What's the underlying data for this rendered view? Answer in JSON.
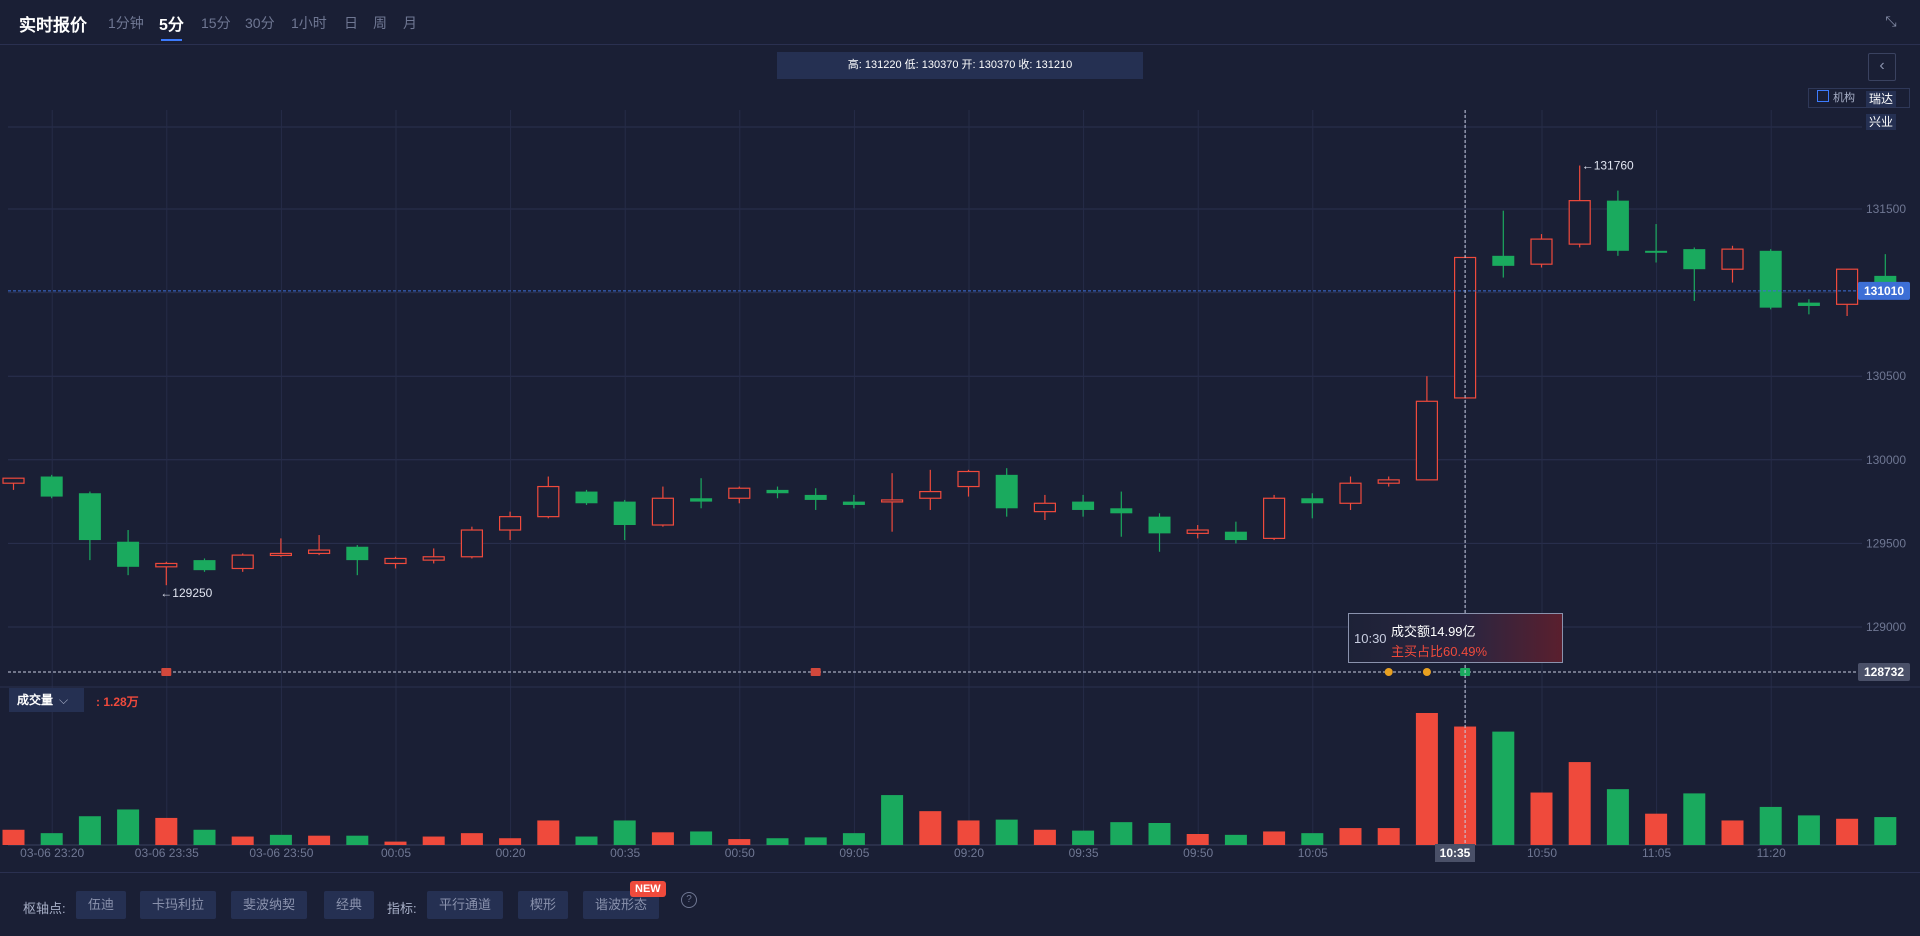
{
  "header": {
    "title": "实时报价",
    "tabs": [
      "1分钟",
      "5分",
      "15分",
      "30分",
      "1小时",
      "日",
      "周",
      "月"
    ],
    "active_tab": "5分"
  },
  "ohlc_text": "高: 131220 低: 130370 开: 130370 收: 131210",
  "legend": {
    "label": "机构",
    "tags": [
      "瑞达",
      "兴业"
    ]
  },
  "tooltip": {
    "time": "10:30",
    "amount": "成交额14.99亿",
    "buy_ratio": "主买占比60.49%"
  },
  "volume_panel": {
    "selector_label": "成交量",
    "value": ": 1.28万"
  },
  "cursor_time": "10:35",
  "bottom": {
    "pivot_label": "枢轴点:",
    "pivot_buttons": [
      "伍迪",
      "卡玛利拉",
      "斐波纳契",
      "经典"
    ],
    "indicator_label": "指标:",
    "indicator_buttons": [
      "平行通道",
      "楔形",
      "谐波形态"
    ],
    "new_badge": "NEW"
  },
  "colors": {
    "up": "#ef4a3c",
    "down": "#1aaa5e",
    "current_price": "#3d6fd6",
    "bg": "#1a1f35"
  },
  "chart_data": {
    "type": "candlestick",
    "price_axis": {
      "ticks": [
        129000,
        129500,
        130000,
        130500,
        131000,
        131500
      ],
      "range": [
        128760,
        131950
      ]
    },
    "current_price_label": "131010",
    "current_price": 131010,
    "low_line_label": "128732",
    "low_line": 128732,
    "high_annotation": {
      "value": 131760,
      "label": "←131760",
      "bar": 41
    },
    "low_annotation": {
      "value": 129250,
      "label": "←129250",
      "bar": 4
    },
    "x_ticks": [
      {
        "bar": 1,
        "label": "03-06 23:20"
      },
      {
        "bar": 4,
        "label": "03-06 23:35"
      },
      {
        "bar": 7,
        "label": "03-06 23:50"
      },
      {
        "bar": 10,
        "label": "00:05"
      },
      {
        "bar": 13,
        "label": "00:20"
      },
      {
        "bar": 16,
        "label": "00:35"
      },
      {
        "bar": 19,
        "label": "00:50"
      },
      {
        "bar": 22,
        "label": "09:05"
      },
      {
        "bar": 25,
        "label": "09:20"
      },
      {
        "bar": 28,
        "label": "09:35"
      },
      {
        "bar": 31,
        "label": "09:50"
      },
      {
        "bar": 34,
        "label": "10:05"
      },
      {
        "bar": 38,
        "label": "10:35"
      },
      {
        "bar": 40,
        "label": "10:50"
      },
      {
        "bar": 43,
        "label": "11:05"
      },
      {
        "bar": 46,
        "label": "11:20"
      }
    ],
    "cursor_bar": 38,
    "candles": [
      {
        "o": 129860,
        "h": 129890,
        "l": 129820,
        "c": 129890
      },
      {
        "o": 129900,
        "h": 129910,
        "l": 129770,
        "c": 129780
      },
      {
        "o": 129800,
        "h": 129810,
        "l": 129400,
        "c": 129520
      },
      {
        "o": 129510,
        "h": 129580,
        "l": 129310,
        "c": 129360
      },
      {
        "o": 129360,
        "h": 129390,
        "l": 129250,
        "c": 129380
      },
      {
        "o": 129400,
        "h": 129410,
        "l": 129330,
        "c": 129340
      },
      {
        "o": 129350,
        "h": 129440,
        "l": 129330,
        "c": 129430
      },
      {
        "o": 129440,
        "h": 129530,
        "l": 129420,
        "c": 129440
      },
      {
        "o": 129440,
        "h": 129550,
        "l": 129430,
        "c": 129460
      },
      {
        "o": 129480,
        "h": 129490,
        "l": 129310,
        "c": 129400
      },
      {
        "o": 129380,
        "h": 129420,
        "l": 129350,
        "c": 129410
      },
      {
        "o": 129400,
        "h": 129470,
        "l": 129380,
        "c": 129420
      },
      {
        "o": 129420,
        "h": 129600,
        "l": 129410,
        "c": 129580
      },
      {
        "o": 129580,
        "h": 129690,
        "l": 129520,
        "c": 129660
      },
      {
        "o": 129660,
        "h": 129900,
        "l": 129650,
        "c": 129840
      },
      {
        "o": 129810,
        "h": 129820,
        "l": 129730,
        "c": 129740
      },
      {
        "o": 129750,
        "h": 129760,
        "l": 129520,
        "c": 129610
      },
      {
        "o": 129610,
        "h": 129840,
        "l": 129600,
        "c": 129770
      },
      {
        "o": 129770,
        "h": 129890,
        "l": 129710,
        "c": 129750
      },
      {
        "o": 129770,
        "h": 129840,
        "l": 129740,
        "c": 129830
      },
      {
        "o": 129820,
        "h": 129840,
        "l": 129770,
        "c": 129800
      },
      {
        "o": 129790,
        "h": 129830,
        "l": 129700,
        "c": 129760
      },
      {
        "o": 129750,
        "h": 129790,
        "l": 129710,
        "c": 129730
      },
      {
        "o": 129760,
        "h": 129920,
        "l": 129570,
        "c": 129760
      },
      {
        "o": 129770,
        "h": 129940,
        "l": 129700,
        "c": 129810
      },
      {
        "o": 129840,
        "h": 129940,
        "l": 129780,
        "c": 129930
      },
      {
        "o": 129910,
        "h": 129950,
        "l": 129660,
        "c": 129710
      },
      {
        "o": 129690,
        "h": 129790,
        "l": 129640,
        "c": 129740
      },
      {
        "o": 129750,
        "h": 129790,
        "l": 129660,
        "c": 129700
      },
      {
        "o": 129710,
        "h": 129810,
        "l": 129540,
        "c": 129680
      },
      {
        "o": 129660,
        "h": 129680,
        "l": 129450,
        "c": 129560
      },
      {
        "o": 129560,
        "h": 129610,
        "l": 129530,
        "c": 129580
      },
      {
        "o": 129570,
        "h": 129630,
        "l": 129500,
        "c": 129520
      },
      {
        "o": 129530,
        "h": 129790,
        "l": 129520,
        "c": 129770
      },
      {
        "o": 129770,
        "h": 129800,
        "l": 129650,
        "c": 129740
      },
      {
        "o": 129740,
        "h": 129900,
        "l": 129700,
        "c": 129860
      },
      {
        "o": 129860,
        "h": 129900,
        "l": 129840,
        "c": 129880
      },
      {
        "o": 129880,
        "h": 130500,
        "l": 129880,
        "c": 130350
      },
      {
        "o": 130370,
        "h": 131220,
        "l": 130370,
        "c": 131210
      },
      {
        "o": 131220,
        "h": 131490,
        "l": 131090,
        "c": 131160
      },
      {
        "o": 131170,
        "h": 131350,
        "l": 131150,
        "c": 131320
      },
      {
        "o": 131290,
        "h": 131760,
        "l": 131270,
        "c": 131550
      },
      {
        "o": 131550,
        "h": 131610,
        "l": 131220,
        "c": 131250
      },
      {
        "o": 131250,
        "h": 131410,
        "l": 131180,
        "c": 131240
      },
      {
        "o": 131260,
        "h": 131270,
        "l": 130950,
        "c": 131140
      },
      {
        "o": 131140,
        "h": 131280,
        "l": 131060,
        "c": 131260
      },
      {
        "o": 131250,
        "h": 131260,
        "l": 130900,
        "c": 130910
      },
      {
        "o": 130940,
        "h": 130960,
        "l": 130870,
        "c": 130920
      },
      {
        "o": 130930,
        "h": 131140,
        "l": 130860,
        "c": 131140
      },
      {
        "o": 131100,
        "h": 131230,
        "l": 130980,
        "c": 131010
      }
    ],
    "volume": [
      {
        "v": 0.9,
        "dir": "up"
      },
      {
        "v": 0.7,
        "dir": "down"
      },
      {
        "v": 1.7,
        "dir": "down"
      },
      {
        "v": 2.1,
        "dir": "down"
      },
      {
        "v": 1.6,
        "dir": "up"
      },
      {
        "v": 0.9,
        "dir": "down"
      },
      {
        "v": 0.5,
        "dir": "up"
      },
      {
        "v": 0.6,
        "dir": "down"
      },
      {
        "v": 0.55,
        "dir": "up"
      },
      {
        "v": 0.55,
        "dir": "down"
      },
      {
        "v": 0.2,
        "dir": "up"
      },
      {
        "v": 0.5,
        "dir": "up"
      },
      {
        "v": 0.7,
        "dir": "up"
      },
      {
        "v": 0.4,
        "dir": "up"
      },
      {
        "v": 1.45,
        "dir": "up"
      },
      {
        "v": 0.5,
        "dir": "down"
      },
      {
        "v": 1.45,
        "dir": "down"
      },
      {
        "v": 0.75,
        "dir": "up"
      },
      {
        "v": 0.8,
        "dir": "down"
      },
      {
        "v": 0.35,
        "dir": "up"
      },
      {
        "v": 0.4,
        "dir": "down"
      },
      {
        "v": 0.45,
        "dir": "down"
      },
      {
        "v": 0.7,
        "dir": "down"
      },
      {
        "v": 2.95,
        "dir": "down"
      },
      {
        "v": 2.0,
        "dir": "up"
      },
      {
        "v": 1.45,
        "dir": "up"
      },
      {
        "v": 1.5,
        "dir": "down"
      },
      {
        "v": 0.9,
        "dir": "up"
      },
      {
        "v": 0.85,
        "dir": "down"
      },
      {
        "v": 1.35,
        "dir": "down"
      },
      {
        "v": 1.3,
        "dir": "down"
      },
      {
        "v": 0.65,
        "dir": "up"
      },
      {
        "v": 0.6,
        "dir": "down"
      },
      {
        "v": 0.8,
        "dir": "up"
      },
      {
        "v": 0.7,
        "dir": "down"
      },
      {
        "v": 1.0,
        "dir": "up"
      },
      {
        "v": 1.0,
        "dir": "up"
      },
      {
        "v": 7.8,
        "dir": "up"
      },
      {
        "v": 7.0,
        "dir": "up"
      },
      {
        "v": 6.7,
        "dir": "down"
      },
      {
        "v": 3.1,
        "dir": "up"
      },
      {
        "v": 4.9,
        "dir": "up"
      },
      {
        "v": 3.3,
        "dir": "down"
      },
      {
        "v": 1.85,
        "dir": "up"
      },
      {
        "v": 3.05,
        "dir": "down"
      },
      {
        "v": 1.45,
        "dir": "up"
      },
      {
        "v": 2.25,
        "dir": "down"
      },
      {
        "v": 1.75,
        "dir": "down"
      },
      {
        "v": 1.55,
        "dir": "up"
      },
      {
        "v": 1.65,
        "dir": "down"
      }
    ],
    "volume_max": 8.2,
    "markers": [
      {
        "bar": 4,
        "type": "red-tag"
      },
      {
        "bar": 21,
        "type": "red-tag"
      },
      {
        "bar": 36,
        "type": "orange-dot"
      },
      {
        "bar": 37,
        "type": "orange-dot"
      },
      {
        "bar": 38,
        "type": "green-tag"
      }
    ]
  }
}
